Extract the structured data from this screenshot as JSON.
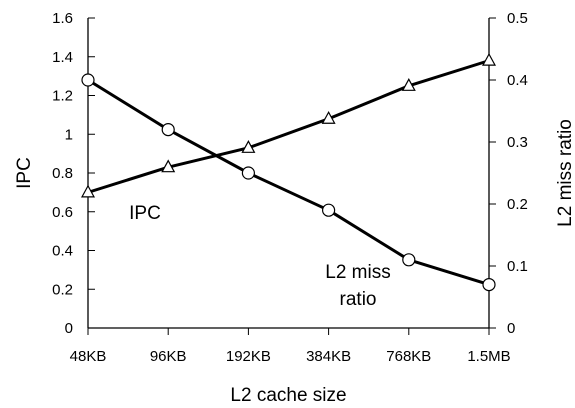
{
  "chart_data": {
    "type": "line",
    "categories": [
      "48KB",
      "96KB",
      "192KB",
      "384KB",
      "768KB",
      "1.5MB"
    ],
    "title": "",
    "xlabel": "L2 cache size",
    "ylabel_left": "IPC",
    "ylabel_right": "L2 miss ratio",
    "ylim_left": [
      0,
      1.6
    ],
    "ylim_right": [
      0,
      0.5
    ],
    "yticks_left": [
      "0",
      "0.2",
      "0.4",
      "0.6",
      "0.8",
      "1",
      "1.2",
      "1.4",
      "1.6"
    ],
    "yticks_right": [
      "0",
      "0.1",
      "0.2",
      "0.3",
      "0.4",
      "0.5"
    ],
    "grid": false,
    "legend": "none",
    "series": [
      {
        "axis": "left",
        "marker": "triangle",
        "values": [
          0.7,
          0.83,
          0.93,
          1.08,
          1.25,
          1.38
        ]
      },
      {
        "axis": "right",
        "marker": "circle",
        "values": [
          0.4,
          0.32,
          0.25,
          0.19,
          0.11,
          0.07
        ]
      }
    ],
    "annotations": [
      {
        "lines": [
          "IPC"
        ],
        "series_index": 0
      },
      {
        "lines": [
          "L2 miss",
          "ratio"
        ],
        "series_index": 1
      }
    ]
  }
}
